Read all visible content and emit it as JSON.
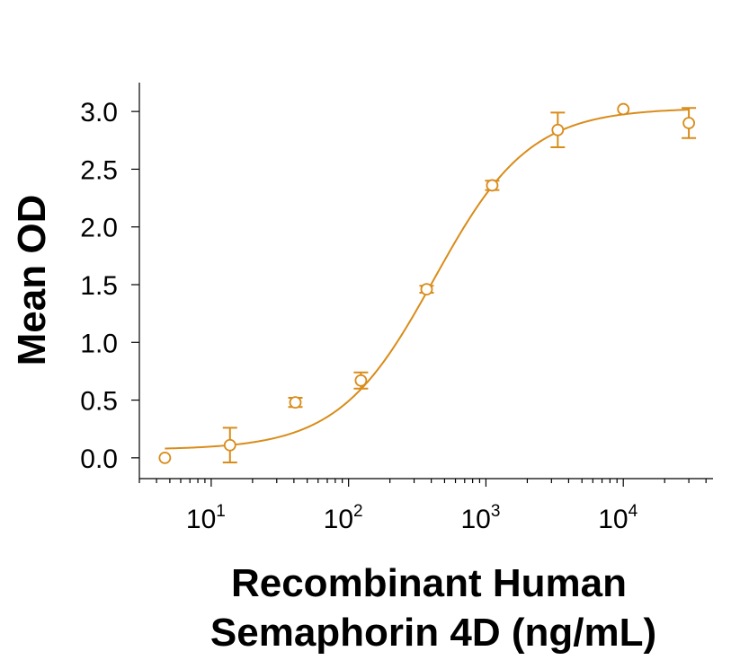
{
  "chart_data": {
    "type": "scatter",
    "ylabel": "Mean OD",
    "xlabel_lines": [
      "Recombinant Human",
      "Semaphorin 4D (ng/mL)"
    ],
    "x_scale": "log",
    "xlim": [
      3.0,
      45000
    ],
    "ylim": [
      -0.18,
      3.25
    ],
    "y_ticks": [
      "0.0",
      "0.5",
      "1.0",
      "1.5",
      "2.0",
      "2.5",
      "3.0"
    ],
    "y_tick_values": [
      0.0,
      0.5,
      1.0,
      1.5,
      2.0,
      2.5,
      3.0
    ],
    "x_ticks": [
      {
        "base": "10",
        "exp": "1",
        "value": 10
      },
      {
        "base": "10",
        "exp": "2",
        "value": 100
      },
      {
        "base": "10",
        "exp": "3",
        "value": 1000
      },
      {
        "base": "10",
        "exp": "4",
        "value": 10000
      }
    ],
    "color": "#D98C1A",
    "series": [
      {
        "points": [
          {
            "x": 4.6,
            "y": 0.0,
            "err": 0
          },
          {
            "x": 13.7,
            "y": 0.11,
            "err": 0.15
          },
          {
            "x": 41,
            "y": 0.48,
            "err": 0.04
          },
          {
            "x": 123,
            "y": 0.67,
            "err": 0.07
          },
          {
            "x": 370,
            "y": 1.46,
            "err": 0.03
          },
          {
            "x": 1111,
            "y": 2.36,
            "err": 0.04
          },
          {
            "x": 3333,
            "y": 2.84,
            "err": 0.15
          },
          {
            "x": 10000,
            "y": 3.02,
            "err": 0
          },
          {
            "x": 30000,
            "y": 2.9,
            "err": 0.13
          }
        ],
        "fit": {
          "model": "4PL",
          "bottom": 0.07,
          "top": 3.03,
          "ec50": 420,
          "hill": 1.25
        }
      }
    ]
  }
}
